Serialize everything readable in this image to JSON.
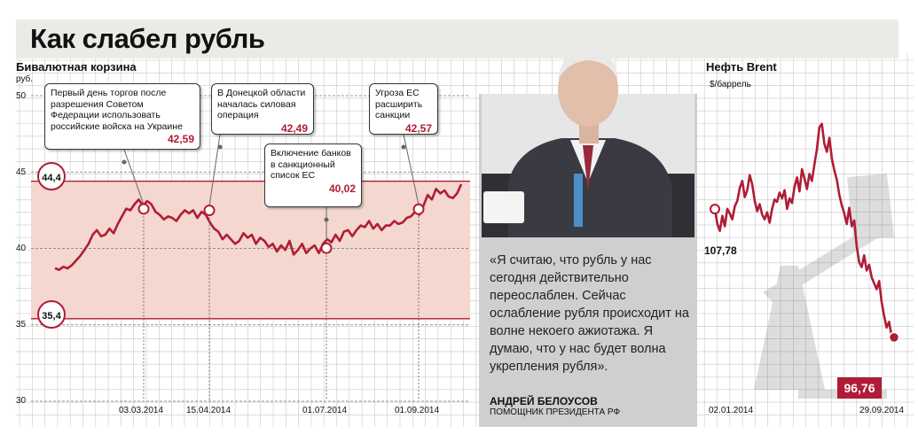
{
  "title": "Как слабел рубль",
  "basket": {
    "label": "Бивалютная корзина",
    "unit": "руб.",
    "yticks": [
      "50",
      "45",
      "40",
      "35",
      "30"
    ],
    "upper_label": "44,4",
    "lower_label": "35,4",
    "dates": [
      "03.03.2014",
      "15.04.2014",
      "01.07.2014",
      "01.09.2014"
    ]
  },
  "callouts": [
    {
      "text": "Первый день торгов после разрешения Советом Федерации использовать российские войска на Украине",
      "value": "42,59"
    },
    {
      "text": "В Донецкой области началась силовая операция",
      "value": "42,49"
    },
    {
      "text": "Включение банков в санкционный список ЕС",
      "value": "40,02"
    },
    {
      "text": "Угроза ЕС расширить санкции",
      "value": "42,57"
    }
  ],
  "quote": {
    "text": "«Я считаю, что рубль у нас сегодня действительно переослаблен. Сейчас ослабление рубля происходит на волне некоего ажиотажа. Я думаю, что у нас будет волна укрепления рубля».",
    "author": "АНДРЕЙ БЕЛОУСОВ",
    "role": "ПОМОЩНИК ПРЕЗИДЕНТА РФ"
  },
  "brent": {
    "label": "Нефть Brent",
    "unit": "$/баррель",
    "start_value": "107,78",
    "end_value": "96,76",
    "start_date": "02.01.2014",
    "end_date": "29.09.2014"
  },
  "colors": {
    "accent": "#b01c35",
    "band": "#f4d7cf",
    "grid": "#c8c8c8",
    "panel": "#cfcfcf"
  },
  "chart_data": [
    {
      "type": "line",
      "title": "Бивалютная корзина",
      "ylabel": "руб.",
      "ylim": [
        30,
        50
      ],
      "band": [
        35.4,
        44.4
      ],
      "x_ticks": [
        "03.03.2014",
        "15.04.2014",
        "01.07.2014",
        "01.09.2014"
      ],
      "values": [
        38.7,
        38.6,
        38.8,
        38.7,
        38.9,
        39.2,
        39.5,
        39.9,
        40.3,
        40.9,
        41.2,
        40.8,
        40.9,
        41.3,
        41.0,
        41.6,
        42.1,
        42.6,
        42.5,
        42.9,
        43.2,
        42.8,
        43.1,
        42.9,
        42.4,
        42.2,
        41.9,
        42.1,
        42.0,
        41.8,
        42.2,
        42.5,
        42.3,
        42.5,
        42.0,
        42.4,
        42.2,
        41.7,
        41.3,
        41.1,
        40.6,
        40.9,
        40.6,
        40.3,
        40.5,
        41.0,
        40.7,
        40.9,
        40.3,
        40.7,
        40.5,
        40.1,
        40.3,
        39.8,
        40.2,
        39.9,
        40.5,
        39.6,
        39.9,
        40.3,
        39.7,
        40.0,
        40.2,
        39.7,
        40.3,
        40.6,
        40.4,
        40.9,
        40.5,
        41.1,
        41.2,
        40.8,
        41.2,
        41.5,
        41.4,
        41.8,
        41.3,
        41.6,
        41.2,
        41.5,
        41.5,
        41.8,
        41.6,
        41.7,
        42.0,
        42.1,
        42.4,
        42.2,
        42.8,
        43.5,
        43.2,
        43.9,
        43.6,
        43.8,
        43.4,
        43.3,
        43.6,
        44.2
      ],
      "points": [
        {
          "label": "03.03.2014",
          "value": 42.59
        },
        {
          "label": "15.04.2014",
          "value": 42.49
        },
        {
          "label": "01.07.2014",
          "value": 40.02
        },
        {
          "label": "01.09.2014",
          "value": 42.57
        }
      ]
    },
    {
      "type": "line",
      "title": "Нефть Brent",
      "ylabel": "$/баррель",
      "x_ticks": [
        "02.01.2014",
        "29.09.2014"
      ],
      "values": [
        107.78,
        106.5,
        105.9,
        107.2,
        106.3,
        107.8,
        107.4,
        106.9,
        108.0,
        108.5,
        109.6,
        110.2,
        108.8,
        109.4,
        110.7,
        109.9,
        108.5,
        107.6,
        108.2,
        107.3,
        106.9,
        107.5,
        106.6,
        107.8,
        108.6,
        108.4,
        109.2,
        108.7,
        109.4,
        107.8,
        108.7,
        108.3,
        109.7,
        110.5,
        109.3,
        111.2,
        110.4,
        109.5,
        110.8,
        110.2,
        111.6,
        112.9,
        114.8,
        115.1,
        113.4,
        112.7,
        113.9,
        112.1,
        111.1,
        110.3,
        109.0,
        108.1,
        107.4,
        106.5,
        107.9,
        106.3,
        106.8,
        104.6,
        103.2,
        102.8,
        103.8,
        102.5,
        103.0,
        101.9,
        101.4,
        100.9,
        101.6,
        99.8,
        98.6,
        97.6,
        98.1,
        96.9,
        96.76
      ]
    }
  ]
}
